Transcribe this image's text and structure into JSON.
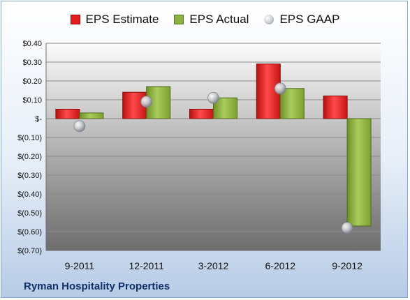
{
  "chart_data": {
    "type": "bar",
    "title": "",
    "xlabel": "",
    "ylabel": "",
    "categories": [
      "9-2011",
      "12-2011",
      "3-2012",
      "6-2012",
      "9-2012"
    ],
    "series": [
      {
        "name": "EPS Estimate",
        "type": "bar",
        "values": [
          0.05,
          0.14,
          0.05,
          0.29,
          0.12
        ]
      },
      {
        "name": "EPS Actual",
        "type": "bar",
        "values": [
          0.03,
          0.17,
          0.11,
          0.16,
          -0.57
        ]
      },
      {
        "name": "EPS GAAP",
        "type": "scatter",
        "values": [
          -0.04,
          0.09,
          0.11,
          0.16,
          -0.58
        ]
      }
    ],
    "ylim": [
      -0.7,
      0.4
    ],
    "yticks": [
      0.4,
      0.3,
      0.2,
      0.1,
      0,
      -0.1,
      -0.2,
      -0.3,
      -0.4,
      -0.5,
      -0.6,
      -0.7
    ],
    "ytick_labels": [
      "$0.40",
      "$0.30",
      "$0.20",
      "$0.10",
      "$-",
      "$(0.10)",
      "$(0.20)",
      "$(0.30)",
      "$(0.40)",
      "$(0.50)",
      "$(0.60)",
      "$(0.70)"
    ],
    "grid": true,
    "legend": "top-center",
    "colors": {
      "estimate": "#e02020",
      "actual": "#8db043",
      "gaap": "#b9bcc2"
    }
  },
  "legend": {
    "estimate": "EPS Estimate",
    "actual": "EPS Actual",
    "gaap": "EPS GAAP"
  },
  "footer": {
    "company": "Ryman Hospitality Properties"
  }
}
